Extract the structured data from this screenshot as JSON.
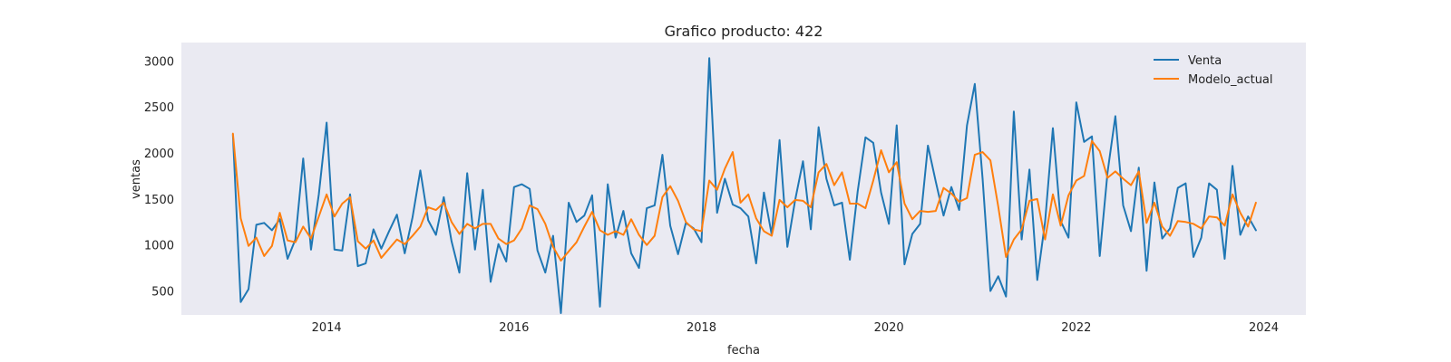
{
  "chart_data": {
    "type": "line",
    "title": "Grafico producto: 422",
    "xlabel": "fecha",
    "ylabel": "ventas",
    "xlim": [
      2012.45,
      2024.45
    ],
    "ylim": [
      240,
      3200
    ],
    "x_ticks": [
      2014,
      2016,
      2018,
      2020,
      2022,
      2024
    ],
    "y_ticks": [
      500,
      1000,
      1500,
      2000,
      2500,
      3000
    ],
    "grid": false,
    "legend_position": "top-right",
    "x_start": 2013.0,
    "x_step": 0.0833333333,
    "series": [
      {
        "name": "Venta",
        "color": "#1f77b4",
        "values": [
          2200,
          380,
          520,
          1220,
          1240,
          1160,
          1280,
          850,
          1060,
          1940,
          950,
          1550,
          2330,
          950,
          940,
          1550,
          770,
          800,
          1170,
          960,
          1150,
          1330,
          910,
          1300,
          1810,
          1270,
          1110,
          1520,
          1040,
          700,
          1780,
          950,
          1600,
          600,
          1010,
          820,
          1630,
          1660,
          1610,
          940,
          700,
          1100,
          260,
          1460,
          1250,
          1320,
          1540,
          330,
          1660,
          1080,
          1370,
          910,
          750,
          1400,
          1430,
          1980,
          1210,
          900,
          1240,
          1180,
          1030,
          3030,
          1350,
          1720,
          1440,
          1400,
          1310,
          800,
          1570,
          1110,
          2140,
          980,
          1490,
          1910,
          1170,
          2280,
          1720,
          1430,
          1460,
          840,
          1580,
          2170,
          2110,
          1570,
          1230,
          2300,
          790,
          1120,
          1230,
          2080,
          1690,
          1320,
          1630,
          1380,
          2300,
          2750,
          1720,
          500,
          660,
          440,
          2450,
          1060,
          1820,
          620,
          1250,
          2270,
          1260,
          1080,
          2550,
          2120,
          2180,
          880,
          1790,
          2400,
          1430,
          1150,
          1840,
          720,
          1680,
          1070,
          1180,
          1620,
          1670,
          870,
          1080,
          1670,
          1600,
          850,
          1860,
          1110,
          1310,
          1160
        ]
      },
      {
        "name": "Modelo_actual",
        "color": "#ff7f0e",
        "values": [
          2210,
          1290,
          990,
          1080,
          880,
          990,
          1350,
          1050,
          1030,
          1200,
          1070,
          1310,
          1550,
          1310,
          1450,
          1520,
          1040,
          960,
          1050,
          860,
          960,
          1060,
          1010,
          1100,
          1200,
          1410,
          1380,
          1460,
          1250,
          1120,
          1230,
          1180,
          1230,
          1230,
          1070,
          1010,
          1050,
          1180,
          1430,
          1390,
          1230,
          980,
          830,
          930,
          1030,
          1200,
          1360,
          1160,
          1110,
          1150,
          1110,
          1280,
          1110,
          1000,
          1100,
          1520,
          1640,
          1480,
          1250,
          1170,
          1150,
          1700,
          1600,
          1830,
          2010,
          1460,
          1550,
          1290,
          1150,
          1100,
          1490,
          1410,
          1490,
          1480,
          1410,
          1790,
          1880,
          1650,
          1790,
          1450,
          1450,
          1400,
          1700,
          2030,
          1790,
          1900,
          1450,
          1280,
          1370,
          1360,
          1370,
          1620,
          1560,
          1470,
          1510,
          1980,
          2010,
          1920,
          1420,
          870,
          1060,
          1170,
          1480,
          1500,
          1060,
          1550,
          1210,
          1540,
          1700,
          1750,
          2130,
          2020,
          1730,
          1800,
          1720,
          1650,
          1800,
          1240,
          1460,
          1200,
          1100,
          1260,
          1250,
          1230,
          1180,
          1310,
          1300,
          1210,
          1550,
          1350,
          1200,
          1460
        ]
      }
    ]
  }
}
